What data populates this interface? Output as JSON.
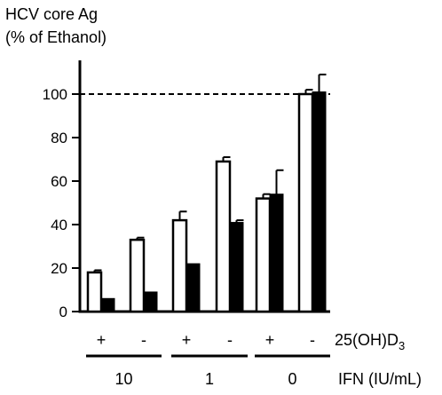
{
  "chart_data": {
    "type": "bar",
    "ylabel_lines": [
      "HCV core Ag",
      "(% of Ethanol)"
    ],
    "ylim": [
      0,
      100
    ],
    "yticks": [
      0,
      20,
      40,
      60,
      80,
      100
    ],
    "reference_line": {
      "y": 100,
      "style": "dashed"
    },
    "groups": [
      {
        "label": "+",
        "open": 18,
        "open_err": 1,
        "filled": 6,
        "filled_err": 0
      },
      {
        "label": "-",
        "open": 33,
        "open_err": 1,
        "filled": 9,
        "filled_err": 0
      },
      {
        "label": "+",
        "open": 42,
        "open_err": 4,
        "filled": 22,
        "filled_err": 0
      },
      {
        "label": "-",
        "open": 69,
        "open_err": 2,
        "filled": 41,
        "filled_err": 1
      },
      {
        "label": "+",
        "open": 52,
        "open_err": 2,
        "filled": 54,
        "filled_err": 11
      },
      {
        "label": "-",
        "open": 100,
        "open_err": 2,
        "filled": 101,
        "filled_err": 8
      }
    ],
    "row_label_25ohd3_base": "25(OH)D",
    "row_label_25ohd3_sub": "3",
    "ifn_levels": [
      "10",
      "1",
      "0"
    ],
    "ifn_label": "IFN (IU/mL)",
    "colors": {
      "open": "#ffffff",
      "filled": "#000000",
      "stroke": "#000000"
    }
  }
}
